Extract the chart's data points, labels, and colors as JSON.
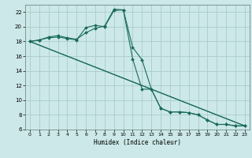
{
  "xlabel": "Humidex (Indice chaleur)",
  "background_color": "#cce8e8",
  "grid_color": "#aacccc",
  "line_color": "#1a6b5a",
  "xlim": [
    -0.5,
    23.5
  ],
  "ylim": [
    6,
    23
  ],
  "yticks": [
    6,
    8,
    10,
    12,
    14,
    16,
    18,
    20,
    22
  ],
  "xticks": [
    0,
    1,
    2,
    3,
    4,
    5,
    6,
    7,
    8,
    9,
    10,
    11,
    12,
    13,
    14,
    15,
    16,
    17,
    18,
    19,
    20,
    21,
    22,
    23
  ],
  "line1_x": [
    0,
    1,
    2,
    3,
    4,
    5,
    6,
    7,
    8,
    9,
    10,
    11,
    12,
    13,
    14,
    15,
    16,
    17,
    18,
    19,
    20,
    21,
    22,
    23
  ],
  "line1_y": [
    18,
    18.2,
    18.6,
    18.8,
    18.5,
    18.3,
    19.2,
    19.8,
    20.1,
    22.4,
    22.3,
    17.2,
    15.5,
    11.5,
    8.9,
    8.4,
    8.4,
    8.3,
    8.0,
    7.3,
    6.7,
    6.7,
    6.5,
    6.5
  ],
  "line2_x": [
    0,
    1,
    2,
    3,
    4,
    5,
    6,
    7,
    8,
    9,
    10,
    11,
    12,
    13,
    14,
    15,
    16,
    17,
    18,
    19,
    20,
    21,
    22,
    23
  ],
  "line2_y": [
    18,
    18.2,
    18.5,
    18.6,
    18.4,
    18.2,
    19.9,
    20.2,
    20.0,
    22.2,
    22.3,
    15.6,
    11.5,
    11.5,
    8.9,
    8.4,
    8.4,
    8.3,
    8.0,
    7.3,
    6.7,
    6.7,
    6.5,
    6.5
  ],
  "line3_x": [
    0,
    23
  ],
  "line3_y": [
    18,
    6.5
  ],
  "line4_x": [
    0,
    23
  ],
  "line4_y": [
    18,
    6.5
  ]
}
